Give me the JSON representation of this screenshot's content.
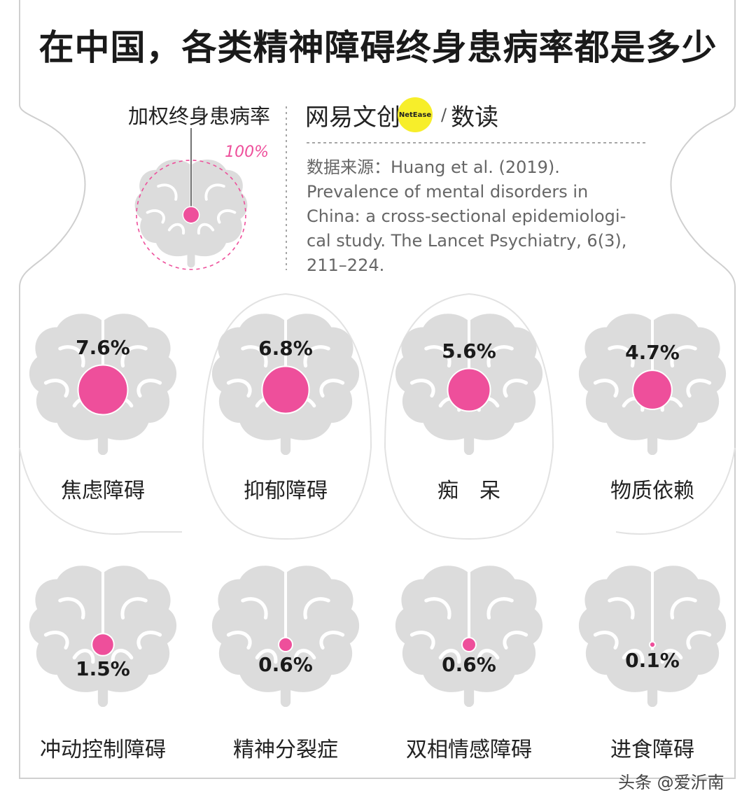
{
  "title": "在中国，各类精神障碍终身患病率都是多少",
  "legend": {
    "label": "加权终身患病率",
    "reference_value": "100%"
  },
  "brand": {
    "left": "网易文创",
    "badge": "NetEase",
    "right": "数读"
  },
  "source": {
    "lines": [
      "数据来源：Huang et al. (2019).",
      "Prevalence of mental disorders in",
      "China: a cross-sectional epidemiologi-",
      "cal study. The Lancet Psychiatry, 6(3),",
      "211–224."
    ]
  },
  "watermark": "头条 @爱沂南",
  "colors": {
    "accent": "#ee4f9b",
    "brain": "#dcdcdc",
    "brand_dot": "#f7ee2a"
  },
  "chart_data": {
    "type": "bubble",
    "reference": {
      "value": 100,
      "label": "100%"
    },
    "categories": [
      "焦虑障碍",
      "抑郁障碍",
      "痴　呆",
      "物质依赖",
      "冲动控制障碍",
      "精神分裂症",
      "双相情感障碍",
      "进食障碍"
    ],
    "values": [
      7.6,
      6.8,
      5.6,
      4.7,
      1.5,
      0.6,
      0.6,
      0.1
    ],
    "labels": [
      "7.6%",
      "6.8%",
      "5.6%",
      "4.7%",
      "1.5%",
      "0.6%",
      "0.6%",
      "0.1%"
    ]
  }
}
